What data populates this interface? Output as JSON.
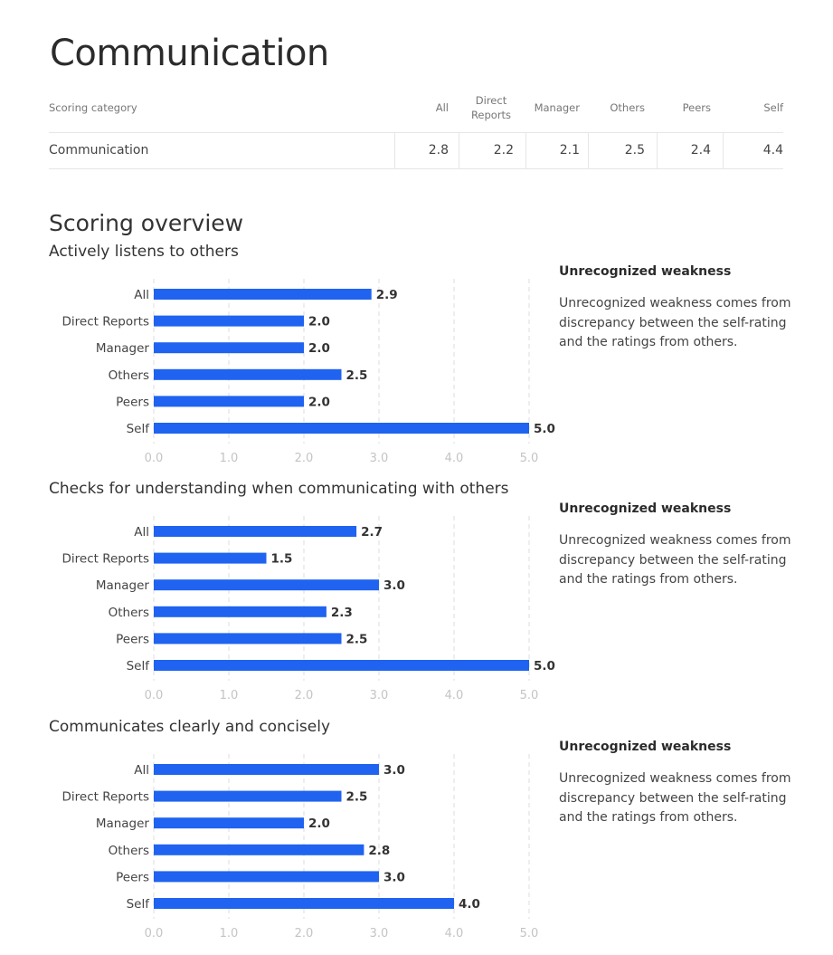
{
  "header": {
    "title": "Communication"
  },
  "table": {
    "columns": [
      "Scoring category",
      "All",
      "Direct Reports",
      "Manager",
      "Others",
      "Peers",
      "Self"
    ],
    "rows": [
      {
        "category": "Communication",
        "values": [
          "2.8",
          "2.2",
          "2.1",
          "2.5",
          "2.4",
          "4.4"
        ]
      }
    ]
  },
  "overview": {
    "title": "Scoring overview"
  },
  "chart_data": [
    {
      "type": "bar",
      "title": "Actively listens to others",
      "categories": [
        "All",
        "Direct Reports",
        "Manager",
        "Others",
        "Peers",
        "Self"
      ],
      "values": [
        2.9,
        2.0,
        2.0,
        2.5,
        2.0,
        5.0
      ],
      "xlim": [
        0,
        5
      ],
      "ticks": [
        "0.0",
        "1.0",
        "2.0",
        "3.0",
        "4.0",
        "5.0"
      ],
      "grid": true,
      "orientation": "horizontal",
      "color": "#1f63f0"
    },
    {
      "type": "bar",
      "title": "Checks for understanding when communicating with others",
      "categories": [
        "All",
        "Direct Reports",
        "Manager",
        "Others",
        "Peers",
        "Self"
      ],
      "values": [
        2.7,
        1.5,
        3.0,
        2.3,
        2.5,
        5.0
      ],
      "xlim": [
        0,
        5
      ],
      "ticks": [
        "0.0",
        "1.0",
        "2.0",
        "3.0",
        "4.0",
        "5.0"
      ],
      "grid": true,
      "orientation": "horizontal",
      "color": "#1f63f0"
    },
    {
      "type": "bar",
      "title": "Communicates clearly and concisely",
      "categories": [
        "All",
        "Direct Reports",
        "Manager",
        "Others",
        "Peers",
        "Self"
      ],
      "values": [
        3.0,
        2.5,
        2.0,
        2.8,
        3.0,
        4.0
      ],
      "xlim": [
        0,
        5
      ],
      "ticks": [
        "0.0",
        "1.0",
        "2.0",
        "3.0",
        "4.0",
        "5.0"
      ],
      "grid": true,
      "orientation": "horizontal",
      "color": "#1f63f0"
    }
  ],
  "insights": [
    {
      "title": "Unrecognized weakness",
      "body": "Unrecognized weakness comes from discrepancy between the self-rating and the ratings from others."
    },
    {
      "title": "Unrecognized weakness",
      "body": "Unrecognized weakness comes from discrepancy between the self-rating and the ratings from others."
    },
    {
      "title": "Unrecognized weakness",
      "body": "Unrecognized weakness comes from discrepancy between the self-rating and the ratings from others."
    }
  ]
}
